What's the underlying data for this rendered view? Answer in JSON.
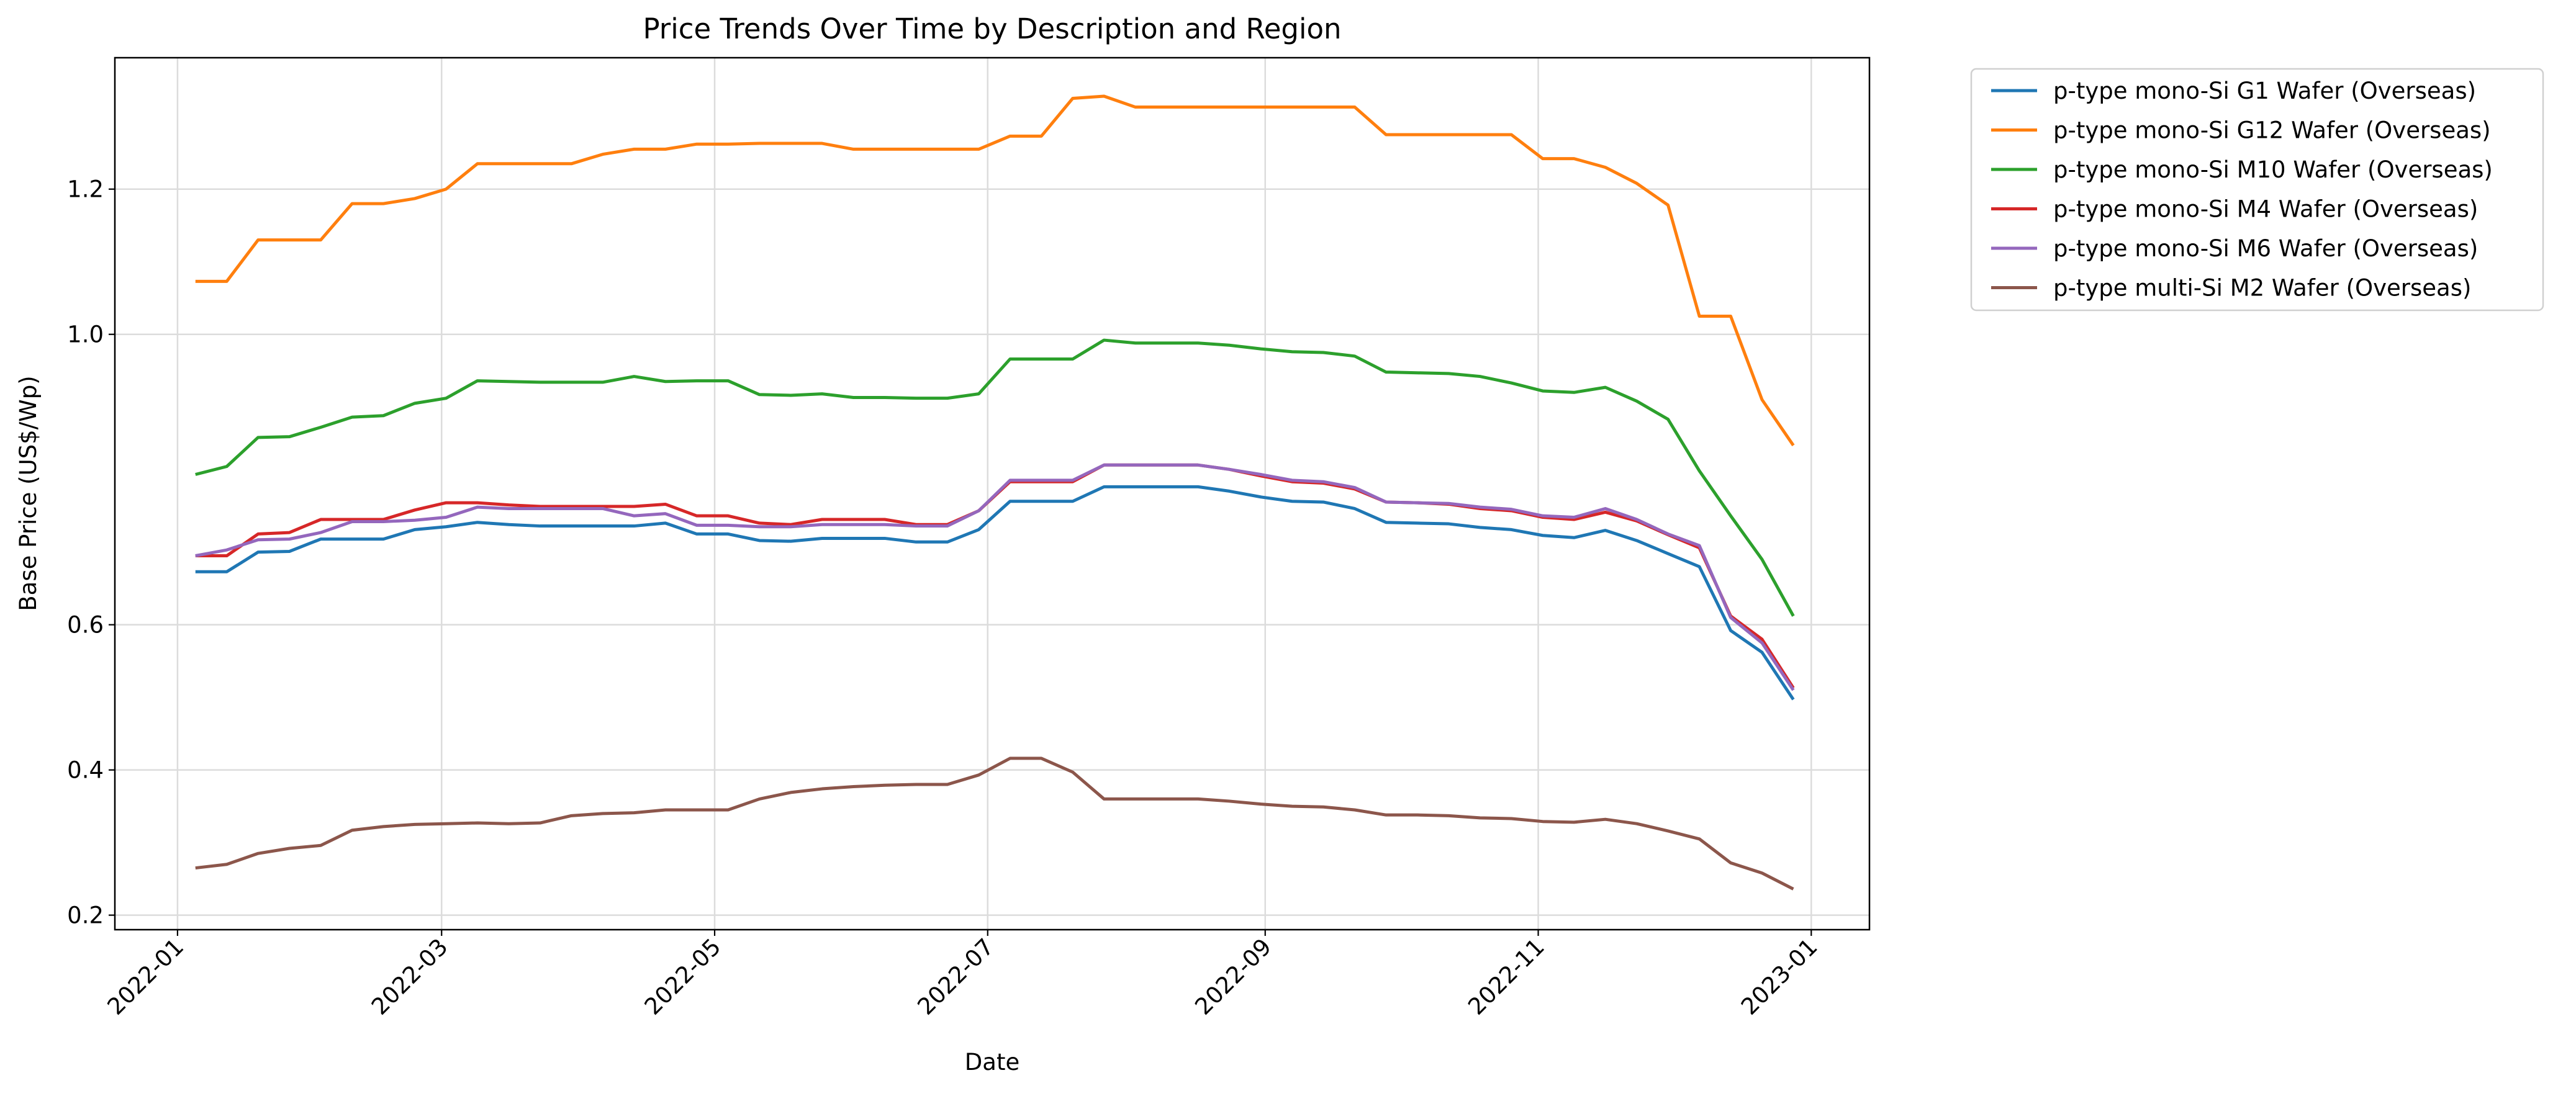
{
  "chart_data": {
    "type": "line",
    "title": "Price Trends Over Time by Description and Region",
    "xlabel": "Date",
    "ylabel": "Base Price (US$/Wp)",
    "x": [
      "2022-01-05",
      "2022-01-12",
      "2022-01-19",
      "2022-01-26",
      "2022-02-02",
      "2022-02-09",
      "2022-02-16",
      "2022-02-23",
      "2022-03-02",
      "2022-03-09",
      "2022-03-16",
      "2022-03-23",
      "2022-03-30",
      "2022-04-06",
      "2022-04-13",
      "2022-04-20",
      "2022-04-27",
      "2022-05-04",
      "2022-05-11",
      "2022-05-18",
      "2022-05-25",
      "2022-06-01",
      "2022-06-08",
      "2022-06-15",
      "2022-06-22",
      "2022-06-29",
      "2022-07-06",
      "2022-07-13",
      "2022-07-20",
      "2022-07-27",
      "2022-08-03",
      "2022-08-10",
      "2022-08-17",
      "2022-08-24",
      "2022-08-31",
      "2022-09-07",
      "2022-09-14",
      "2022-09-21",
      "2022-09-28",
      "2022-10-05",
      "2022-10-12",
      "2022-10-19",
      "2022-10-26",
      "2022-11-02",
      "2022-11-09",
      "2022-11-16",
      "2022-11-23",
      "2022-11-30",
      "2022-12-07",
      "2022-12-14",
      "2022-12-21",
      "2022-12-28"
    ],
    "series": [
      {
        "name": "p-type mono-Si G1 Wafer (Overseas)",
        "color": "#1f77b4",
        "values": [
          0.673,
          0.673,
          0.7,
          0.701,
          0.718,
          0.718,
          0.718,
          0.731,
          0.735,
          0.741,
          0.738,
          0.736,
          0.736,
          0.736,
          0.736,
          0.74,
          0.725,
          0.725,
          0.716,
          0.715,
          0.719,
          0.719,
          0.719,
          0.714,
          0.714,
          0.731,
          0.77,
          0.77,
          0.77,
          0.79,
          0.79,
          0.79,
          0.79,
          0.784,
          0.776,
          0.77,
          0.769,
          0.76,
          0.741,
          0.74,
          0.739,
          0.734,
          0.731,
          0.723,
          0.72,
          0.73,
          0.716,
          0.698,
          0.68,
          0.592,
          0.562,
          0.497
        ]
      },
      {
        "name": "p-type mono-Si G12 Wafer (Overseas)",
        "color": "#ff7f0e",
        "values": [
          1.073,
          1.073,
          1.13,
          1.13,
          1.13,
          1.18,
          1.18,
          1.187,
          1.2,
          1.235,
          1.235,
          1.235,
          1.235,
          1.248,
          1.255,
          1.255,
          1.262,
          1.262,
          1.263,
          1.263,
          1.263,
          1.255,
          1.255,
          1.255,
          1.255,
          1.255,
          1.273,
          1.273,
          1.325,
          1.328,
          1.313,
          1.313,
          1.313,
          1.313,
          1.313,
          1.313,
          1.313,
          1.313,
          1.275,
          1.275,
          1.275,
          1.275,
          1.275,
          1.242,
          1.242,
          1.23,
          1.208,
          1.178,
          1.025,
          1.025,
          0.91,
          0.847
        ]
      },
      {
        "name": "p-type mono-Si M10 Wafer (Overseas)",
        "color": "#2ca02c",
        "values": [
          0.807,
          0.818,
          0.858,
          0.859,
          0.872,
          0.886,
          0.888,
          0.905,
          0.912,
          0.936,
          0.935,
          0.934,
          0.934,
          0.934,
          0.942,
          0.935,
          0.936,
          0.936,
          0.917,
          0.916,
          0.918,
          0.913,
          0.913,
          0.912,
          0.912,
          0.918,
          0.966,
          0.966,
          0.966,
          0.992,
          0.988,
          0.988,
          0.988,
          0.985,
          0.98,
          0.976,
          0.975,
          0.97,
          0.948,
          0.947,
          0.946,
          0.942,
          0.933,
          0.922,
          0.92,
          0.927,
          0.908,
          0.883,
          0.812,
          0.75,
          0.69,
          0.612
        ]
      },
      {
        "name": "p-type mono-Si M4 Wafer (Overseas)",
        "color": "#d62728",
        "values": [
          0.695,
          0.695,
          0.725,
          0.727,
          0.745,
          0.745,
          0.745,
          0.758,
          0.768,
          0.768,
          0.765,
          0.763,
          0.763,
          0.763,
          0.763,
          0.766,
          0.75,
          0.75,
          0.74,
          0.738,
          0.745,
          0.745,
          0.745,
          0.738,
          0.738,
          0.757,
          0.797,
          0.797,
          0.797,
          0.82,
          0.82,
          0.82,
          0.82,
          0.814,
          0.805,
          0.797,
          0.795,
          0.787,
          0.769,
          0.768,
          0.766,
          0.76,
          0.757,
          0.748,
          0.745,
          0.755,
          0.743,
          0.724,
          0.706,
          0.612,
          0.58,
          0.513
        ]
      },
      {
        "name": "p-type mono-Si M6 Wafer (Overseas)",
        "color": "#9467bd",
        "values": [
          0.695,
          0.703,
          0.717,
          0.718,
          0.727,
          0.742,
          0.742,
          0.744,
          0.748,
          0.762,
          0.76,
          0.76,
          0.76,
          0.76,
          0.75,
          0.753,
          0.737,
          0.737,
          0.735,
          0.735,
          0.738,
          0.738,
          0.738,
          0.736,
          0.736,
          0.757,
          0.799,
          0.799,
          0.799,
          0.82,
          0.82,
          0.82,
          0.82,
          0.814,
          0.807,
          0.799,
          0.797,
          0.789,
          0.769,
          0.768,
          0.767,
          0.762,
          0.759,
          0.75,
          0.748,
          0.76,
          0.745,
          0.725,
          0.709,
          0.61,
          0.575,
          0.51
        ]
      },
      {
        "name": "p-type multi-Si M2 Wafer (Overseas)",
        "color": "#8c564b",
        "values": [
          0.265,
          0.27,
          0.285,
          0.292,
          0.296,
          0.317,
          0.322,
          0.325,
          0.326,
          0.327,
          0.326,
          0.327,
          0.337,
          0.34,
          0.341,
          0.345,
          0.345,
          0.345,
          0.36,
          0.369,
          0.374,
          0.377,
          0.379,
          0.38,
          0.38,
          0.393,
          0.416,
          0.416,
          0.397,
          0.36,
          0.36,
          0.36,
          0.36,
          0.357,
          0.353,
          0.35,
          0.349,
          0.345,
          0.338,
          0.338,
          0.337,
          0.334,
          0.333,
          0.329,
          0.328,
          0.332,
          0.326,
          0.316,
          0.305,
          0.272,
          0.258,
          0.236
        ]
      }
    ],
    "xlim": [
      "2021-12-18",
      "2023-01-14"
    ],
    "xticks": [
      {
        "value": "2022-01-01",
        "label": "2022-01"
      },
      {
        "value": "2022-03-01",
        "label": "2022-03"
      },
      {
        "value": "2022-05-01",
        "label": "2022-05"
      },
      {
        "value": "2022-07-01",
        "label": "2022-07"
      },
      {
        "value": "2022-09-01",
        "label": "2022-09"
      },
      {
        "value": "2022-11-01",
        "label": "2022-11"
      },
      {
        "value": "2023-01-01",
        "label": "2023-01"
      }
    ],
    "ylim": [
      0.18,
      1.381
    ],
    "yticks": [
      0.2,
      0.4,
      0.6,
      {
        "value": 1.0,
        "label": "1.0"
      },
      1.2
    ],
    "grid": true,
    "legend": "outside-upper-right"
  }
}
